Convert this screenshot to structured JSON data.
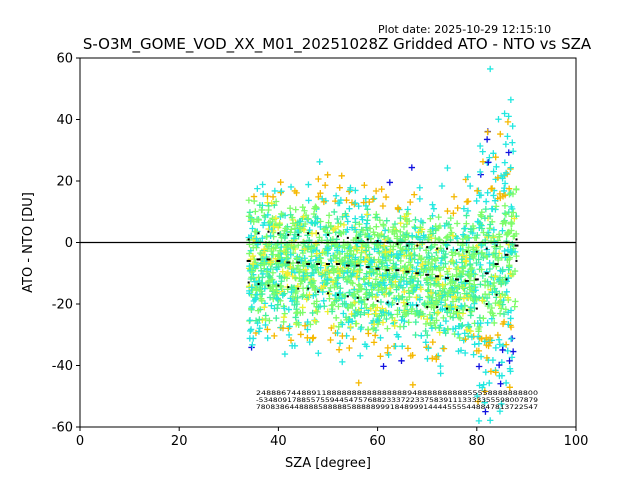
{
  "plot_date": "Plot date: 2025-10-29 12:15:10",
  "chart_data": {
    "type": "scatter",
    "title": "S-O3M_GOME_VOD_XX_M01_20251028Z Gridded ATO - NTO vs SZA",
    "xlabel": "SZA [degree]",
    "ylabel": "ATO - NTO [DU]",
    "xlim": [
      0,
      100
    ],
    "ylim": [
      -60,
      60
    ],
    "xticks": [
      0,
      20,
      40,
      60,
      80,
      100
    ],
    "yticks": [
      -60,
      -40,
      -20,
      0,
      20,
      40,
      60
    ],
    "reference_line_y": 0,
    "scatter_density": {
      "sza_range": [
        34,
        88
      ],
      "marker": "+",
      "colors": [
        "#7cfc6a",
        "#40f0a0",
        "#22e8e0",
        "#f0f030",
        "#f5b800",
        "#1010e0"
      ],
      "core_band_center": [
        -6,
        -7,
        -8,
        -10,
        -12,
        -9,
        -2
      ],
      "core_band_sza": [
        34,
        45,
        55,
        65,
        75,
        82,
        88
      ]
    },
    "series": [
      {
        "name": "median",
        "x": [
          34,
          36,
          38,
          40,
          42,
          44,
          46,
          48,
          50,
          52,
          54,
          56,
          58,
          60,
          62,
          64,
          66,
          68,
          70,
          72,
          74,
          76,
          78,
          80,
          82,
          84,
          86,
          88
        ],
        "y": [
          -6,
          -5.5,
          -5.5,
          -6,
          -6.5,
          -6.5,
          -7,
          -7,
          -7,
          -7,
          -7.5,
          -7.5,
          -8,
          -8.5,
          -9,
          -9,
          -9.5,
          -10,
          -10.5,
          -11,
          -11.5,
          -12,
          -12.5,
          -12,
          -10,
          -7,
          -4,
          -1
        ]
      },
      {
        "name": "upper-percentile",
        "x": [
          34,
          36,
          38,
          40,
          42,
          44,
          46,
          48,
          50,
          52,
          54,
          56,
          58,
          60,
          62,
          64,
          66,
          68,
          70,
          72,
          74,
          76,
          78,
          80,
          82,
          84,
          86,
          88
        ],
        "y": [
          1,
          3,
          3.5,
          3,
          2.5,
          2.5,
          3,
          3,
          2.5,
          2,
          1.5,
          1.5,
          1,
          0.5,
          0,
          -0.5,
          -1,
          -1,
          -1.5,
          -2,
          -2,
          -2.5,
          -3,
          -3,
          -2,
          -1,
          0,
          1
        ]
      },
      {
        "name": "lower-percentile",
        "x": [
          34,
          36,
          38,
          40,
          42,
          44,
          46,
          48,
          50,
          52,
          54,
          56,
          58,
          60,
          62,
          64,
          66,
          68,
          70,
          72,
          74,
          76,
          78,
          80,
          82,
          84,
          86,
          88
        ],
        "y": [
          -13,
          -13.5,
          -14,
          -14,
          -14.5,
          -15,
          -15,
          -16,
          -16.5,
          -17,
          -17.5,
          -18,
          -18.5,
          -19,
          -19.5,
          -20,
          -20,
          -20.5,
          -21,
          -21,
          -21.5,
          -22,
          -22,
          -21.5,
          -20,
          -17,
          -12,
          -6
        ]
      }
    ],
    "stat_rows": [
      "24888674488911888888888888888894888888888855558888888800",
      "-53480917885575594454757688233372233758391113333355598007879",
      "78083864488885888885888889991848999144445555448847813722547"
    ]
  }
}
